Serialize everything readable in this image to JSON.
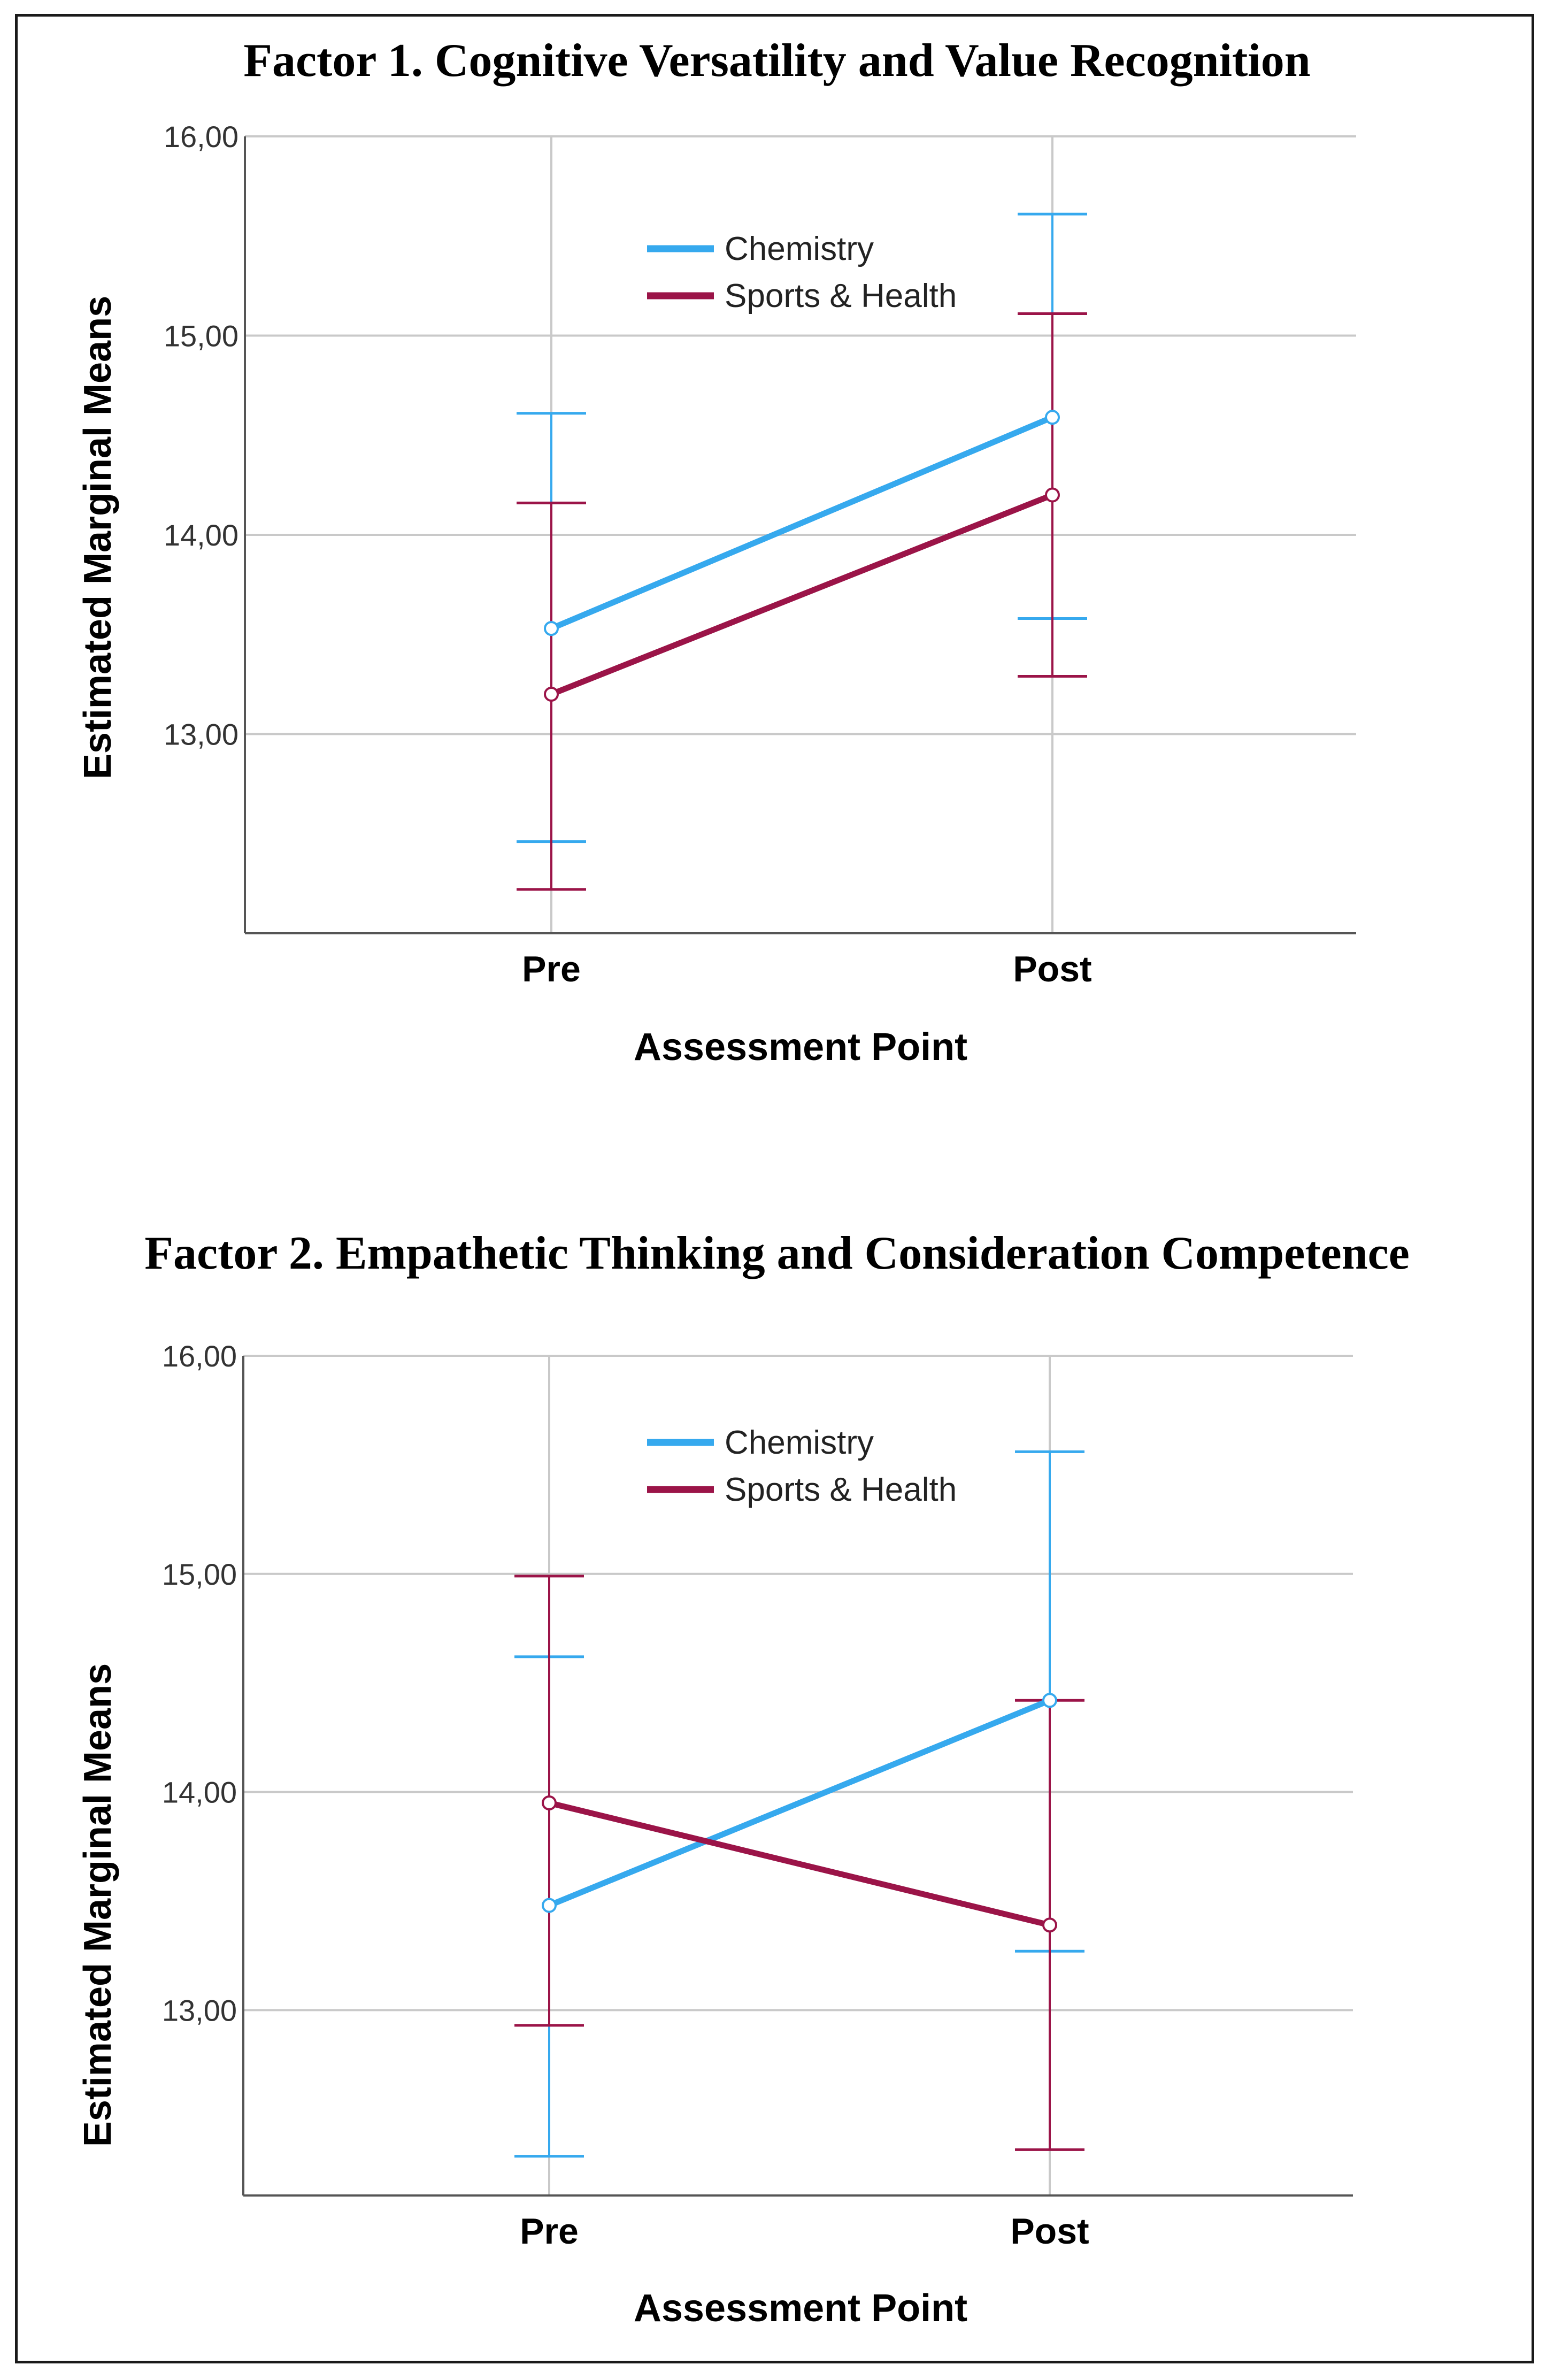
{
  "chart_data": [
    {
      "type": "line",
      "title": "Factor 1. Cognitive Versatility and Value Recognition",
      "xlabel": "Assessment Point",
      "ylabel": "Estimated Marginal Means",
      "categories": [
        "Pre",
        "Post"
      ],
      "ylim": [
        12.0,
        16.0
      ],
      "yticks": [
        "13,00",
        "14,00",
        "15,00",
        "16,00"
      ],
      "legend_position": "top-center",
      "series": [
        {
          "name": "Chemistry",
          "color": "#36a9ee",
          "values": [
            13.53,
            14.59
          ],
          "error_low": [
            12.46,
            13.58
          ],
          "error_high": [
            14.61,
            15.61
          ]
        },
        {
          "name": "Sports & Health",
          "color": "#9b1448",
          "values": [
            13.2,
            14.2
          ],
          "error_low": [
            12.22,
            13.29
          ],
          "error_high": [
            14.16,
            15.11
          ]
        }
      ]
    },
    {
      "type": "line",
      "title": "Factor 2. Empathetic Thinking and Consideration Competence",
      "xlabel": "Assessment Point",
      "ylabel": "Estimated Marginal Means",
      "categories": [
        "Pre",
        "Post"
      ],
      "ylim": [
        12.15,
        16.0
      ],
      "yticks": [
        "13,00",
        "14,00",
        "15,00",
        "16,00"
      ],
      "legend_position": "top-center",
      "series": [
        {
          "name": "Chemistry",
          "color": "#36a9ee",
          "values": [
            13.48,
            14.42
          ],
          "error_low": [
            12.33,
            13.27
          ],
          "error_high": [
            14.62,
            15.56
          ]
        },
        {
          "name": "Sports & Health",
          "color": "#9b1448",
          "values": [
            13.95,
            13.39
          ],
          "error_low": [
            12.93,
            12.36
          ],
          "error_high": [
            14.99,
            14.42
          ]
        }
      ]
    }
  ]
}
